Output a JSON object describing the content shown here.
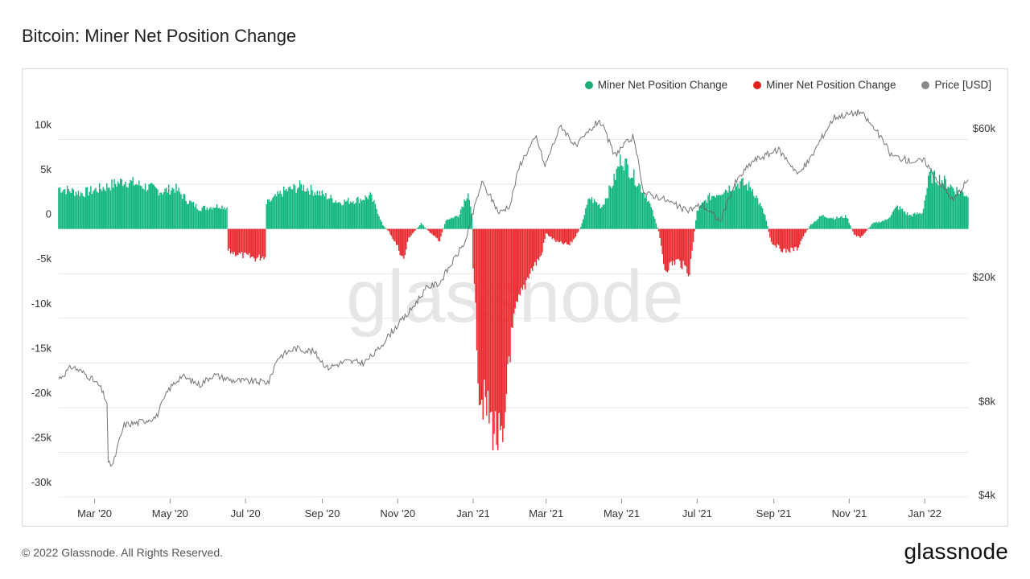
{
  "title": "Bitcoin: Miner Net Position Change",
  "watermark": "glassnode",
  "footer": "© 2022 Glassnode. All Rights Reserved.",
  "brand": "glassnode",
  "colors": {
    "positive": "#0cb57a",
    "negative": "#e8262c",
    "price": "#808080",
    "grid": "#e8e8e8"
  },
  "legend": [
    {
      "label": "Miner Net Position Change",
      "color": "#1aad73"
    },
    {
      "label": "Miner Net Position Change",
      "color": "#e5211e"
    },
    {
      "label": "Price [USD]",
      "color": "#888888"
    }
  ],
  "chart_data": {
    "type": "bar",
    "series": [
      {
        "name": "Miner Net Position Change",
        "axis": "left",
        "unit": "BTC"
      },
      {
        "name": "Price [USD]",
        "axis": "right",
        "scale": "log",
        "type": "line"
      }
    ],
    "x_start": "2020-02-01",
    "x_end": "2022-02-05",
    "left_axis": {
      "ylim": [
        -30000,
        15000
      ],
      "ticks": [
        10000,
        5000,
        0,
        -5000,
        -10000,
        -15000,
        -20000,
        -25000,
        -30000
      ],
      "tick_labels": [
        "10k",
        "5k",
        "0",
        "-5k",
        "-10k",
        "-15k",
        "-20k",
        "-25k",
        "-30k"
      ]
    },
    "right_axis": {
      "scale": "log",
      "ticks": [
        60000,
        20000,
        8000,
        4000
      ],
      "tick_labels": [
        "$60k",
        "$20k",
        "$8k",
        "$4k"
      ]
    },
    "x_ticks": [
      {
        "date": "2020-03-01",
        "label": "Mar '20"
      },
      {
        "date": "2020-05-01",
        "label": "May '20"
      },
      {
        "date": "2020-07-01",
        "label": "Jul '20"
      },
      {
        "date": "2020-09-01",
        "label": "Sep '20"
      },
      {
        "date": "2020-11-01",
        "label": "Nov '20"
      },
      {
        "date": "2021-01-01",
        "label": "Jan '21"
      },
      {
        "date": "2021-03-01",
        "label": "Mar '21"
      },
      {
        "date": "2021-05-01",
        "label": "May '21"
      },
      {
        "date": "2021-07-01",
        "label": "Jul '21"
      },
      {
        "date": "2021-09-01",
        "label": "Sep '21"
      },
      {
        "date": "2021-11-01",
        "label": "Nov '21"
      },
      {
        "date": "2022-01-01",
        "label": "Jan '22"
      }
    ],
    "net_position_keypoints": [
      [
        "2020-02-01",
        4600
      ],
      [
        "2020-02-20",
        4000
      ],
      [
        "2020-03-10",
        4700
      ],
      [
        "2020-03-25",
        5400
      ],
      [
        "2020-04-10",
        4800
      ],
      [
        "2020-04-25",
        4200
      ],
      [
        "2020-05-05",
        4600
      ],
      [
        "2020-05-15",
        3200
      ],
      [
        "2020-05-25",
        2300
      ],
      [
        "2020-06-10",
        2600
      ],
      [
        "2020-06-16",
        2400
      ],
      [
        "2020-06-17",
        -2500
      ],
      [
        "2020-06-30",
        -3000
      ],
      [
        "2020-07-10",
        -3300
      ],
      [
        "2020-07-17",
        -3000
      ],
      [
        "2020-07-18",
        2800
      ],
      [
        "2020-08-01",
        4200
      ],
      [
        "2020-08-15",
        4800
      ],
      [
        "2020-08-30",
        4000
      ],
      [
        "2020-09-15",
        3000
      ],
      [
        "2020-10-01",
        3300
      ],
      [
        "2020-10-10",
        3700
      ],
      [
        "2020-10-15",
        2300
      ],
      [
        "2020-10-20",
        400
      ],
      [
        "2020-10-25",
        -300
      ],
      [
        "2020-11-01",
        -2000
      ],
      [
        "2020-11-06",
        -3500
      ],
      [
        "2020-11-10",
        -1000
      ],
      [
        "2020-11-20",
        600
      ],
      [
        "2020-11-30",
        -800
      ],
      [
        "2020-12-05",
        -1300
      ],
      [
        "2020-12-10",
        1000
      ],
      [
        "2020-12-20",
        1500
      ],
      [
        "2020-12-28",
        4200
      ],
      [
        "2020-12-31",
        1500
      ],
      [
        "2021-01-01",
        -4000
      ],
      [
        "2021-01-06",
        -18000
      ],
      [
        "2021-01-14",
        -21000
      ],
      [
        "2021-01-20",
        -23000
      ],
      [
        "2021-01-26",
        -25500
      ],
      [
        "2021-01-29",
        -15000
      ],
      [
        "2021-02-05",
        -9000
      ],
      [
        "2021-02-15",
        -5000
      ],
      [
        "2021-02-25",
        -3000
      ],
      [
        "2021-03-01",
        -500
      ],
      [
        "2021-03-10",
        -1500
      ],
      [
        "2021-03-20",
        -1800
      ],
      [
        "2021-03-25",
        -800
      ],
      [
        "2021-03-29",
        200
      ],
      [
        "2021-04-05",
        3500
      ],
      [
        "2021-04-15",
        2500
      ],
      [
        "2021-04-25",
        5500
      ],
      [
        "2021-05-01",
        8000
      ],
      [
        "2021-05-08",
        6500
      ],
      [
        "2021-05-15",
        5000
      ],
      [
        "2021-05-22",
        3500
      ],
      [
        "2021-05-27",
        1500
      ],
      [
        "2021-05-31",
        -300
      ],
      [
        "2021-06-05",
        -4500
      ],
      [
        "2021-06-15",
        -3500
      ],
      [
        "2021-06-25",
        -4800
      ],
      [
        "2021-07-01",
        2000
      ],
      [
        "2021-07-10",
        3500
      ],
      [
        "2021-07-25",
        4500
      ],
      [
        "2021-08-05",
        5200
      ],
      [
        "2021-08-15",
        4500
      ],
      [
        "2021-08-25",
        1500
      ],
      [
        "2021-08-30",
        -1500
      ],
      [
        "2021-09-10",
        -2500
      ],
      [
        "2021-09-20",
        -2200
      ],
      [
        "2021-09-25",
        -800
      ],
      [
        "2021-10-01",
        500
      ],
      [
        "2021-10-10",
        1500
      ],
      [
        "2021-10-20",
        1200
      ],
      [
        "2021-10-30",
        1400
      ],
      [
        "2021-11-05",
        -600
      ],
      [
        "2021-11-10",
        -1000
      ],
      [
        "2021-11-20",
        600
      ],
      [
        "2021-12-01",
        1000
      ],
      [
        "2021-12-10",
        2500
      ],
      [
        "2021-12-20",
        1500
      ],
      [
        "2021-12-30",
        1800
      ],
      [
        "2022-01-05",
        6000
      ],
      [
        "2022-01-15",
        5500
      ],
      [
        "2022-01-25",
        4500
      ],
      [
        "2022-02-05",
        3800
      ]
    ],
    "price_keypoints": [
      [
        "2020-02-01",
        9400
      ],
      [
        "2020-02-12",
        10300
      ],
      [
        "2020-02-25",
        9600
      ],
      [
        "2020-03-05",
        8900
      ],
      [
        "2020-03-11",
        7900
      ],
      [
        "2020-03-12",
        5000
      ],
      [
        "2020-03-16",
        5000
      ],
      [
        "2020-03-25",
        6700
      ],
      [
        "2020-04-05",
        6800
      ],
      [
        "2020-04-20",
        7100
      ],
      [
        "2020-04-30",
        8700
      ],
      [
        "2020-05-10",
        9600
      ],
      [
        "2020-05-25",
        9000
      ],
      [
        "2020-06-05",
        9700
      ],
      [
        "2020-06-20",
        9300
      ],
      [
        "2020-07-10",
        9200
      ],
      [
        "2020-07-20",
        9200
      ],
      [
        "2020-07-27",
        11000
      ],
      [
        "2020-08-10",
        11800
      ],
      [
        "2020-08-25",
        11500
      ],
      [
        "2020-09-05",
        10200
      ],
      [
        "2020-09-20",
        10700
      ],
      [
        "2020-10-05",
        10600
      ],
      [
        "2020-10-15",
        11500
      ],
      [
        "2020-10-25",
        13000
      ],
      [
        "2020-11-10",
        15300
      ],
      [
        "2020-11-25",
        18500
      ],
      [
        "2020-12-05",
        19100
      ],
      [
        "2020-12-17",
        22800
      ],
      [
        "2020-12-27",
        26500
      ],
      [
        "2021-01-08",
        40000
      ],
      [
        "2021-01-15",
        36000
      ],
      [
        "2021-01-22",
        32000
      ],
      [
        "2021-01-31",
        34000
      ],
      [
        "2021-02-08",
        46000
      ],
      [
        "2021-02-21",
        56000
      ],
      [
        "2021-02-28",
        45000
      ],
      [
        "2021-03-13",
        61000
      ],
      [
        "2021-03-25",
        52000
      ],
      [
        "2021-04-13",
        63500
      ],
      [
        "2021-04-25",
        49000
      ],
      [
        "2021-05-10",
        56000
      ],
      [
        "2021-05-19",
        37000
      ],
      [
        "2021-06-01",
        36000
      ],
      [
        "2021-06-22",
        32500
      ],
      [
        "2021-07-05",
        34000
      ],
      [
        "2021-07-20",
        30000
      ],
      [
        "2021-08-01",
        40000
      ],
      [
        "2021-08-15",
        47000
      ],
      [
        "2021-09-05",
        51000
      ],
      [
        "2021-09-21",
        42500
      ],
      [
        "2021-10-01",
        48000
      ],
      [
        "2021-10-20",
        65000
      ],
      [
        "2021-11-10",
        67500
      ],
      [
        "2021-11-25",
        57000
      ],
      [
        "2021-12-05",
        49000
      ],
      [
        "2021-12-20",
        47000
      ],
      [
        "2022-01-01",
        47000
      ],
      [
        "2022-01-10",
        41500
      ],
      [
        "2022-01-24",
        35000
      ],
      [
        "2022-02-05",
        41000
      ]
    ]
  }
}
